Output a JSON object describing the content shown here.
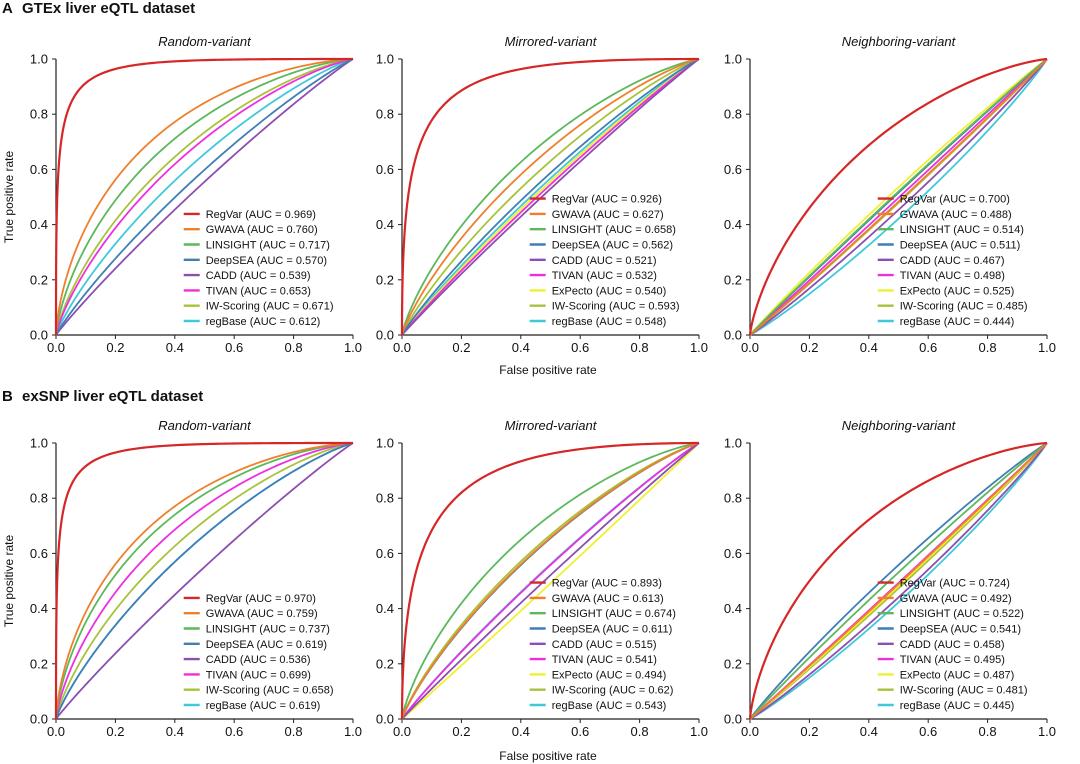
{
  "figure": {
    "x_axis_label": "False positive rate",
    "y_axis_label": "True positive rate",
    "ticks": [
      "0.0",
      "0.2",
      "0.4",
      "0.6",
      "0.8",
      "1.0"
    ]
  },
  "colors": {
    "RegVar": "#d62728",
    "GWAVA": "#f07f2c",
    "LINSIGHT": "#5cb85c",
    "DeepSEA": "#3f7fb5",
    "CADD": "#8c4fb0",
    "TIVAN": "#ee2fe0",
    "ExPecto": "#f0f032",
    "IW-Scoring": "#a8c33a",
    "regBase": "#3fc9d9"
  },
  "chart_data": [
    {
      "type": "line",
      "section": "A",
      "section_title": "GTEx liver eQTL dataset",
      "title": "Random-variant",
      "xlim": [
        0,
        1
      ],
      "ylim": [
        0,
        1
      ],
      "legend": "bottom-right",
      "series": [
        {
          "name": "RegVar",
          "auc": 0.969,
          "label": "RegVar (AUC = 0.969)"
        },
        {
          "name": "GWAVA",
          "auc": 0.76,
          "label": "GWAVA (AUC = 0.760)"
        },
        {
          "name": "LINSIGHT",
          "auc": 0.717,
          "label": "LINSIGHT (AUC = 0.717)"
        },
        {
          "name": "DeepSEA",
          "auc": 0.57,
          "label": "DeepSEA (AUC = 0.570)"
        },
        {
          "name": "CADD",
          "auc": 0.539,
          "label": "CADD (AUC = 0.539)"
        },
        {
          "name": "TIVAN",
          "auc": 0.653,
          "label": "TIVAN (AUC = 0.653)"
        },
        {
          "name": "IW-Scoring",
          "auc": 0.671,
          "label": "IW-Scoring (AUC = 0.671)"
        },
        {
          "name": "regBase",
          "auc": 0.612,
          "label": "regBase (AUC = 0.612)"
        }
      ]
    },
    {
      "type": "line",
      "section": "A",
      "title": "Mirrored-variant",
      "xlim": [
        0,
        1
      ],
      "ylim": [
        0,
        1
      ],
      "legend": "bottom-right",
      "series": [
        {
          "name": "RegVar",
          "auc": 0.926,
          "label": "RegVar (AUC = 0.926)"
        },
        {
          "name": "GWAVA",
          "auc": 0.627,
          "label": "GWAVA (AUC = 0.627)"
        },
        {
          "name": "LINSIGHT",
          "auc": 0.658,
          "label": "LINSIGHT (AUC = 0.658)"
        },
        {
          "name": "DeepSEA",
          "auc": 0.562,
          "label": "DeepSEA (AUC = 0.562)"
        },
        {
          "name": "CADD",
          "auc": 0.521,
          "label": "CADD (AUC = 0.521)"
        },
        {
          "name": "TIVAN",
          "auc": 0.532,
          "label": "TIVAN (AUC = 0.532)"
        },
        {
          "name": "ExPecto",
          "auc": 0.54,
          "label": "ExPecto (AUC = 0.540)"
        },
        {
          "name": "IW-Scoring",
          "auc": 0.593,
          "label": "IW-Scoring (AUC = 0.593)"
        },
        {
          "name": "regBase",
          "auc": 0.548,
          "label": "regBase (AUC = 0.548)"
        }
      ]
    },
    {
      "type": "line",
      "section": "A",
      "title": "Neighboring-variant",
      "xlim": [
        0,
        1
      ],
      "ylim": [
        0,
        1
      ],
      "legend": "bottom-right",
      "series": [
        {
          "name": "RegVar",
          "auc": 0.7,
          "label": "RegVar (AUC = 0.700)"
        },
        {
          "name": "GWAVA",
          "auc": 0.488,
          "label": "GWAVA (AUC = 0.488)"
        },
        {
          "name": "LINSIGHT",
          "auc": 0.514,
          "label": "LINSIGHT (AUC = 0.514)"
        },
        {
          "name": "DeepSEA",
          "auc": 0.511,
          "label": "DeepSEA (AUC = 0.511)"
        },
        {
          "name": "CADD",
          "auc": 0.467,
          "label": "CADD (AUC = 0.467)"
        },
        {
          "name": "TIVAN",
          "auc": 0.498,
          "label": "TIVAN (AUC = 0.498)"
        },
        {
          "name": "ExPecto",
          "auc": 0.525,
          "label": "ExPecto (AUC = 0.525)"
        },
        {
          "name": "IW-Scoring",
          "auc": 0.485,
          "label": "IW-Scoring (AUC = 0.485)"
        },
        {
          "name": "regBase",
          "auc": 0.444,
          "label": "regBase (AUC = 0.444)"
        }
      ]
    },
    {
      "type": "line",
      "section": "B",
      "section_title": "exSNP liver eQTL dataset",
      "title": "Random-variant",
      "xlim": [
        0,
        1
      ],
      "ylim": [
        0,
        1
      ],
      "legend": "bottom-right",
      "series": [
        {
          "name": "RegVar",
          "auc": 0.97,
          "label": "RegVar (AUC = 0.970)"
        },
        {
          "name": "GWAVA",
          "auc": 0.759,
          "label": "GWAVA (AUC = 0.759)"
        },
        {
          "name": "LINSIGHT",
          "auc": 0.737,
          "label": "LINSIGHT (AUC = 0.737)"
        },
        {
          "name": "DeepSEA",
          "auc": 0.619,
          "label": "DeepSEA (AUC = 0.619)"
        },
        {
          "name": "CADD",
          "auc": 0.536,
          "label": "CADD (AUC = 0.536)"
        },
        {
          "name": "TIVAN",
          "auc": 0.699,
          "label": "TIVAN (AUC = 0.699)"
        },
        {
          "name": "IW-Scoring",
          "auc": 0.658,
          "label": "IW-Scoring (AUC = 0.658)"
        },
        {
          "name": "regBase",
          "auc": 0.619,
          "label": "regBase (AUC = 0.619)"
        }
      ]
    },
    {
      "type": "line",
      "section": "B",
      "title": "Mirrored-variant",
      "xlim": [
        0,
        1
      ],
      "ylim": [
        0,
        1
      ],
      "legend": "bottom-right",
      "series": [
        {
          "name": "RegVar",
          "auc": 0.893,
          "label": "RegVar (AUC = 0.893)"
        },
        {
          "name": "GWAVA",
          "auc": 0.613,
          "label": "GWAVA (AUC = 0.613)"
        },
        {
          "name": "LINSIGHT",
          "auc": 0.674,
          "label": "LINSIGHT (AUC = 0.674)"
        },
        {
          "name": "DeepSEA",
          "auc": 0.611,
          "label": "DeepSEA (AUC = 0.611)"
        },
        {
          "name": "CADD",
          "auc": 0.515,
          "label": "CADD (AUC = 0.515)"
        },
        {
          "name": "TIVAN",
          "auc": 0.541,
          "label": "TIVAN (AUC = 0.541)"
        },
        {
          "name": "ExPecto",
          "auc": 0.494,
          "label": "ExPecto (AUC = 0.494)"
        },
        {
          "name": "IW-Scoring",
          "auc": 0.62,
          "label": "IW-Scoring (AUC = 0.62)"
        },
        {
          "name": "regBase",
          "auc": 0.543,
          "label": "regBase (AUC = 0.543)"
        }
      ]
    },
    {
      "type": "line",
      "section": "B",
      "title": "Neighboring-variant",
      "xlim": [
        0,
        1
      ],
      "ylim": [
        0,
        1
      ],
      "legend": "bottom-right",
      "series": [
        {
          "name": "RegVar",
          "auc": 0.724,
          "label": "RegVar (AUC = 0.724)"
        },
        {
          "name": "GWAVA",
          "auc": 0.492,
          "label": "GWAVA (AUC = 0.492)"
        },
        {
          "name": "LINSIGHT",
          "auc": 0.522,
          "label": "LINSIGHT (AUC = 0.522)"
        },
        {
          "name": "DeepSEA",
          "auc": 0.541,
          "label": "DeepSEA (AUC = 0.541)"
        },
        {
          "name": "CADD",
          "auc": 0.458,
          "label": "CADD (AUC = 0.458)"
        },
        {
          "name": "TIVAN",
          "auc": 0.495,
          "label": "TIVAN (AUC = 0.495)"
        },
        {
          "name": "ExPecto",
          "auc": 0.487,
          "label": "ExPecto (AUC = 0.487)"
        },
        {
          "name": "IW-Scoring",
          "auc": 0.481,
          "label": "IW-Scoring (AUC = 0.481)"
        },
        {
          "name": "regBase",
          "auc": 0.445,
          "label": "regBase (AUC = 0.445)"
        }
      ]
    }
  ]
}
